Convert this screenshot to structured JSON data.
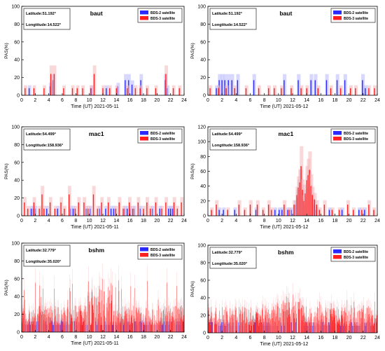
{
  "legend_items": [
    "BDS-2 satellite",
    "BDS-3 satellite"
  ],
  "colors": {
    "bds2": "#2a2aff",
    "bds3": "#ff2020",
    "bds3_faint": "#f4b8bc",
    "bds2_faint": "#b8b8ff"
  },
  "chart_data": [
    {
      "type": "bar",
      "station": "baut",
      "latitude": "Latitude:51.192°",
      "longitude": "Longtitude:14.522°",
      "xlabel": "Time (UT)",
      "date": "2021-05-11",
      "ylabel": "PAS(%)",
      "xlim": [
        0,
        24
      ],
      "ylim": [
        0,
        100
      ],
      "xticks": [
        "0",
        "2",
        "4",
        "6",
        "8",
        "10",
        "12",
        "14",
        "16",
        "18",
        "20",
        "22",
        "24"
      ],
      "yticks": [
        "0",
        "20",
        "40",
        "60",
        "80",
        "100"
      ],
      "series": [
        {
          "name": "BDS-2 satellite",
          "x": [
            1.1,
            4.2,
            4.6,
            10.3,
            12.5,
            14.2,
            15.3,
            15.8,
            16.3,
            17.6,
            21.2,
            21.5
          ],
          "values": [
            8,
            10,
            17,
            8,
            8,
            10,
            17,
            17,
            12,
            17,
            17,
            8
          ]
        },
        {
          "name": "BDS-3 satellite",
          "x": [
            0.5,
            1.8,
            3.3,
            4.3,
            4.8,
            6.2,
            7.5,
            8.2,
            9.0,
            10.2,
            10.7,
            12.0,
            13.0,
            14.0,
            15.6,
            16.8,
            17.5,
            18.5,
            19.8,
            21.3,
            22.4,
            23.3
          ],
          "values": [
            8,
            8,
            8,
            24,
            24,
            8,
            8,
            8,
            8,
            8,
            24,
            8,
            8,
            8,
            8,
            8,
            8,
            8,
            8,
            24,
            8,
            8
          ]
        }
      ]
    },
    {
      "type": "bar",
      "station": "baut",
      "latitude": "Latitude:51.192°",
      "longitude": "Longtitude:14.522°",
      "xlabel": "Time (UT)",
      "date": "2021-05-12",
      "ylabel": "PAS(%)",
      "xlim": [
        0,
        24
      ],
      "ylim": [
        0,
        100
      ],
      "xticks": [
        "0",
        "2",
        "4",
        "6",
        "8",
        "10",
        "12",
        "14",
        "16",
        "18",
        "20",
        "22",
        "24"
      ],
      "yticks": [
        "0",
        "20",
        "40",
        "60",
        "80",
        "100"
      ],
      "series": [
        {
          "name": "BDS-2 satellite",
          "x": [
            1.2,
            1.6,
            2.0,
            2.4,
            2.9,
            3.4,
            4.2,
            6.5,
            10.8,
            12.8,
            14.6,
            15.2,
            16.8,
            18.3,
            19.4,
            21.9,
            22.3
          ],
          "values": [
            8,
            17,
            17,
            17,
            17,
            17,
            17,
            17,
            17,
            17,
            17,
            17,
            17,
            17,
            17,
            17,
            8
          ]
        },
        {
          "name": "BDS-3 satellite",
          "x": [
            0.3,
            1.5,
            2.6,
            3.8,
            5.4,
            7.2,
            8.6,
            9.4,
            10.4,
            11.8,
            13.2,
            14.0,
            15.6,
            17.4,
            18.8,
            20.2,
            20.9,
            22.8,
            23.6
          ],
          "values": [
            8,
            8,
            8,
            8,
            8,
            8,
            8,
            8,
            8,
            8,
            8,
            8,
            8,
            8,
            8,
            8,
            8,
            8,
            8
          ]
        }
      ]
    },
    {
      "type": "bar",
      "station": "mac1",
      "latitude": "Latitude:54.499°",
      "longitude": "Longtitude:158.936°",
      "xlabel": "Time (UT)",
      "date": "2021-05-11",
      "ylabel": "PAS(%)",
      "xlim": [
        0,
        24
      ],
      "ylim": [
        0,
        100
      ],
      "xticks": [
        "0",
        "2",
        "4",
        "6",
        "8",
        "10",
        "12",
        "14",
        "16",
        "18",
        "20",
        "22",
        "24"
      ],
      "yticks": [
        "0",
        "20",
        "40",
        "60",
        "80",
        "100"
      ],
      "series": [
        {
          "name": "BDS-2 satellite",
          "x": [
            1.4,
            1.7,
            2.0,
            3.7,
            5.3,
            7.2,
            7.6,
            9.5,
            10.1,
            11.5,
            12.4,
            13.2,
            13.6,
            15.2,
            15.6,
            16.0,
            16.6,
            17.5,
            19.3,
            20.4,
            21.7,
            22.0,
            22.3
          ],
          "values": [
            8,
            8,
            8,
            8,
            8,
            8,
            8,
            8,
            8,
            8,
            8,
            8,
            8,
            8,
            8,
            8,
            8,
            8,
            8,
            8,
            8,
            8,
            8
          ]
        },
        {
          "name": "BDS-3 satellite",
          "x": [
            0.4,
            0.9,
            1.8,
            2.6,
            3.0,
            3.3,
            4.2,
            4.9,
            5.8,
            6.3,
            7.0,
            7.9,
            8.4,
            9.2,
            9.8,
            10.6,
            11.2,
            11.8,
            12.8,
            13.9,
            14.4,
            15.0,
            15.9,
            16.4,
            17.2,
            18.0,
            18.5,
            19.0,
            19.8,
            20.7,
            21.3,
            22.5,
            23.0,
            23.6
          ],
          "values": [
            15,
            8,
            15,
            8,
            24,
            8,
            15,
            8,
            15,
            8,
            24,
            8,
            15,
            15,
            8,
            24,
            8,
            15,
            15,
            8,
            15,
            8,
            15,
            8,
            15,
            8,
            15,
            8,
            15,
            8,
            15,
            15,
            8,
            15
          ]
        }
      ]
    },
    {
      "type": "bar",
      "station": "mac1",
      "latitude": "Latitude:54.499°",
      "longitude": "Longtitude:158.936°",
      "xlabel": "Time (UT)",
      "date": "2021-05-12",
      "ylabel": "PAS(%)",
      "xlim": [
        0,
        24
      ],
      "ylim": [
        0,
        120
      ],
      "xticks": [
        "0",
        "2",
        "4",
        "6",
        "8",
        "10",
        "12",
        "14",
        "16",
        "18",
        "20",
        "22",
        "24"
      ],
      "yticks": [
        "0",
        "20",
        "40",
        "60",
        "80",
        "100",
        "120"
      ],
      "series": [
        {
          "name": "BDS-2 satellite",
          "x": [
            1.6,
            2.2,
            3.8,
            6.8,
            9.5,
            10.1,
            10.5,
            11.3,
            11.8,
            12.4,
            12.7,
            12.9,
            13.1,
            13.3,
            13.5,
            13.7,
            13.9,
            14.1,
            14.3,
            14.5,
            14.7,
            15.0,
            15.3,
            17.2,
            19.0,
            21.4,
            22.2
          ],
          "values": [
            8,
            8,
            8,
            8,
            8,
            8,
            8,
            8,
            8,
            15,
            25,
            35,
            44,
            30,
            22,
            15,
            25,
            38,
            44,
            30,
            22,
            15,
            8,
            8,
            8,
            8,
            8
          ]
        },
        {
          "name": "BDS-3 satellite",
          "x": [
            0.5,
            1.2,
            2.8,
            4.4,
            5.2,
            6.0,
            7.0,
            7.8,
            8.6,
            9.0,
            10.8,
            11.5,
            12.2,
            12.6,
            12.8,
            13.0,
            13.2,
            13.4,
            13.6,
            13.8,
            14.0,
            14.2,
            14.4,
            14.6,
            14.8,
            15.1,
            15.4,
            15.8,
            16.5,
            17.6,
            18.6,
            19.8,
            20.6,
            21.8,
            22.8,
            23.5
          ],
          "values": [
            8,
            15,
            8,
            15,
            8,
            15,
            15,
            8,
            15,
            8,
            15,
            8,
            15,
            28,
            38,
            45,
            67,
            35,
            20,
            30,
            48,
            55,
            62,
            40,
            28,
            22,
            15,
            8,
            15,
            8,
            8,
            15,
            8,
            8,
            15,
            8
          ]
        }
      ]
    },
    {
      "type": "bar",
      "station": "bshm",
      "latitude": "Latitude:32.779°",
      "longitude": "Longtitude:35.020°",
      "xlabel": "Time (UT)",
      "date": "2021-05-11",
      "ylabel": "PAS(%)",
      "xlim": [
        0,
        24
      ],
      "ylim": [
        0,
        100
      ],
      "xticks": [
        "0",
        "2",
        "4",
        "6",
        "8",
        "10",
        "12",
        "14",
        "16",
        "18",
        "20",
        "22",
        "24"
      ],
      "yticks": [
        "0",
        "20",
        "40",
        "60",
        "80",
        "100"
      ],
      "series": [
        {
          "name": "BDS-2 satellite",
          "pattern": "dense",
          "x": [
            0,
            24
          ],
          "values": [
            8,
            17
          ]
        },
        {
          "name": "BDS-3 satellite",
          "pattern": "dense",
          "x": [
            0,
            24
          ],
          "values": [
            24,
            58
          ]
        }
      ]
    },
    {
      "type": "bar",
      "station": "bshm",
      "latitude": "Latitude:32.779°",
      "longitude": "Longtitude:35.020°",
      "xlabel": "Time (UT)",
      "date": "2021-05-12",
      "ylabel": "PAS(%)",
      "xlim": [
        0,
        24
      ],
      "ylim": [
        0,
        100
      ],
      "xticks": [
        "0",
        "2",
        "4",
        "6",
        "8",
        "10",
        "12",
        "14",
        "16",
        "18",
        "20",
        "22",
        "24"
      ],
      "yticks": [
        "0",
        "20",
        "40",
        "60",
        "80",
        "100"
      ],
      "series": [
        {
          "name": "BDS-2 satellite",
          "pattern": "dense",
          "x": [
            0,
            24
          ],
          "values": [
            8,
            17
          ]
        },
        {
          "name": "BDS-3 satellite",
          "pattern": "dense",
          "x": [
            0,
            24
          ],
          "values": [
            24,
            40
          ]
        }
      ]
    }
  ]
}
